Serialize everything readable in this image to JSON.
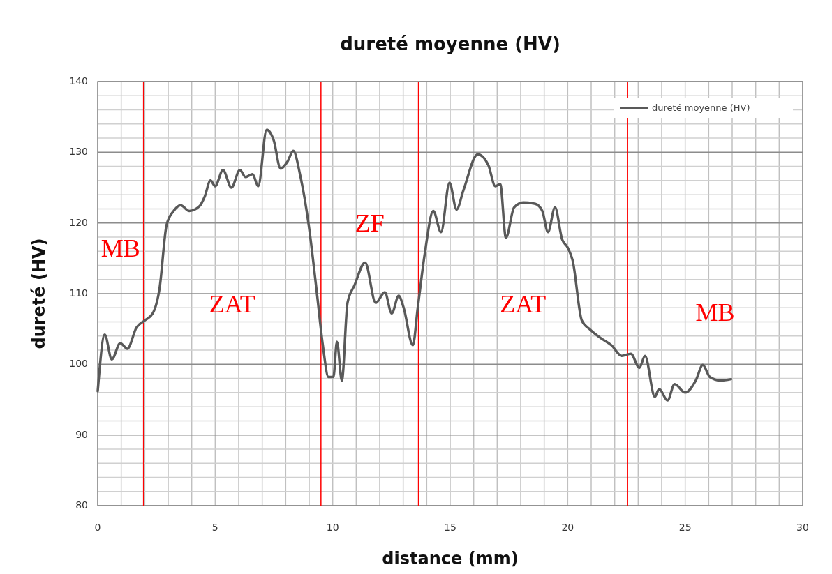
{
  "chart_data": {
    "type": "line",
    "title": "dureté moyenne (HV)",
    "xlabel": "distance (mm)",
    "ylabel": "dureté (HV)",
    "series": [
      {
        "name": "dureté moyenne (HV)",
        "color": "#595959",
        "x": [
          0,
          0.3,
          0.6,
          0.96,
          1.26,
          1.65,
          2.0,
          2.34,
          2.63,
          2.93,
          3.23,
          3.53,
          3.9,
          4.34,
          4.55,
          4.8,
          5.0,
          5.33,
          5.69,
          6.05,
          6.29,
          6.59,
          6.83,
          7.19,
          7.49,
          7.78,
          8.08,
          8.32,
          8.62,
          8.98,
          9.34,
          9.58,
          9.82,
          10.03,
          10.18,
          10.39,
          10.63,
          10.93,
          11.38,
          11.83,
          12.22,
          12.51,
          12.81,
          13.02,
          13.41,
          13.62,
          13.92,
          14.28,
          14.61,
          14.97,
          15.27,
          15.57,
          16.17,
          16.62,
          16.92,
          17.13,
          17.37,
          17.72,
          18.11,
          18.62,
          18.92,
          19.16,
          19.46,
          19.76,
          20.0,
          20.21,
          20.6,
          20.96,
          21.41,
          21.86,
          22.3,
          22.69,
          23.05,
          23.29,
          23.71,
          23.89,
          24.25,
          24.55,
          25.0,
          25.45,
          25.75,
          26.05,
          26.5,
          26.95
        ],
        "values": [
          96.2,
          104.2,
          100.7,
          103,
          102.2,
          105.2,
          106.2,
          107.2,
          110.7,
          119.7,
          121.7,
          122.5,
          121.7,
          122.4,
          123.7,
          126,
          125.2,
          127.5,
          125,
          127.5,
          126.5,
          126.9,
          125.2,
          133.2,
          131.7,
          127.7,
          128.7,
          130.2,
          126.7,
          119.7,
          109.7,
          102.7,
          98.2,
          98.2,
          103.2,
          97.7,
          108.7,
          111.2,
          114.4,
          108.7,
          110.2,
          107.2,
          109.7,
          108,
          102.7,
          108,
          115.7,
          121.7,
          118.7,
          125.7,
          121.9,
          124.7,
          129.7,
          128.2,
          125.2,
          125.5,
          117.9,
          122.2,
          122.9,
          122.7,
          121.7,
          118.7,
          122.2,
          117.7,
          116.5,
          114.7,
          106.2,
          104.9,
          103.7,
          102.7,
          101.2,
          101.5,
          99.5,
          101.2,
          95.4,
          96.5,
          94.9,
          97.2,
          96,
          97.7,
          99.9,
          98.2,
          97.7,
          97.9
        ]
      }
    ],
    "xlim": [
      0,
      30
    ],
    "xticks": [
      0,
      5,
      10,
      15,
      20,
      25,
      30
    ],
    "ylim": [
      80,
      140
    ],
    "yticks": [
      80,
      90,
      100,
      110,
      120,
      130,
      140
    ],
    "grid": true,
    "legend": "top right",
    "marker": "none",
    "line_style": "solid",
    "ref_lines": [
      {
        "axis": "x",
        "value": 1.95,
        "color": "#ff0000"
      },
      {
        "axis": "x",
        "value": 9.5,
        "color": "#ff0000"
      },
      {
        "axis": "x",
        "value": 13.65,
        "color": "#ff0000"
      },
      {
        "axis": "x",
        "value": 22.55,
        "color": "#ff0000"
      }
    ],
    "annotations": [
      "MB",
      "ZAT",
      "ZF",
      "ZAT",
      "MB"
    ]
  }
}
